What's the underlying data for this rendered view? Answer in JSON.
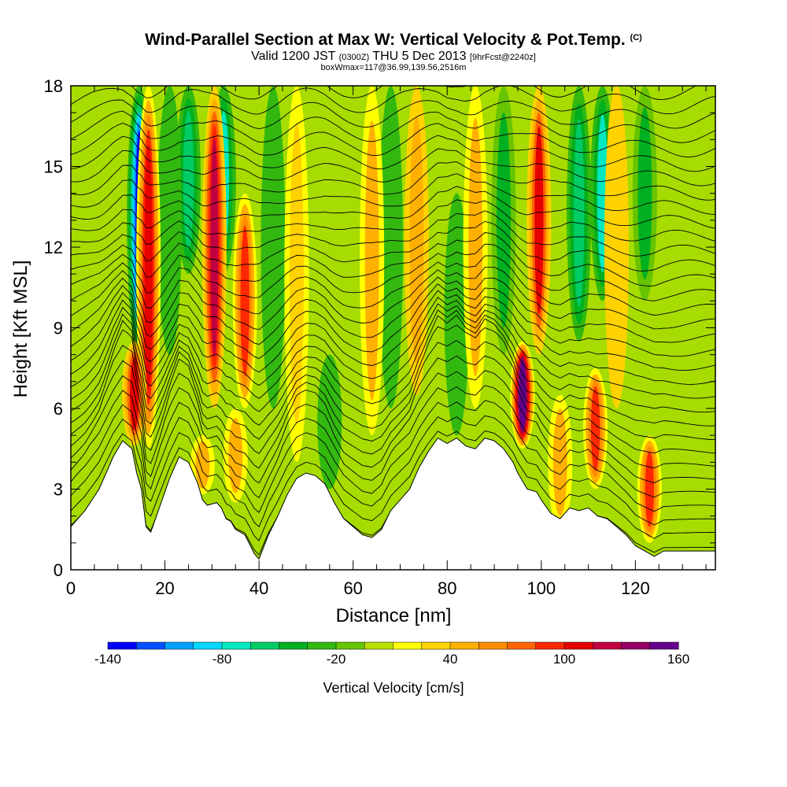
{
  "chart_data": {
    "type": "heatmap",
    "title": "Wind-Parallel Section at Max W: Vertical Velocity & Pot.Temp.",
    "title_mark": "(C)",
    "subtitle_prefix": "Valid 1200 JST",
    "subtitle_utc": "(0300Z)",
    "subtitle_date": "THU 5 Dec 2013",
    "subtitle_fcst": "[9hrFcst@2240z]",
    "subtitle2": "boxWmax=117@36.99,139.56,2516m",
    "xlabel": "Distance [nm]",
    "ylabel": "Height [Kft MSL]",
    "xlim": [
      0,
      137
    ],
    "ylim": [
      0,
      18
    ],
    "x_ticks": [
      "0",
      "20",
      "40",
      "60",
      "80",
      "100",
      "120"
    ],
    "y_ticks": [
      "0",
      "3",
      "6",
      "9",
      "12",
      "15",
      "18"
    ],
    "colorbar": {
      "title": "Vertical Velocity [cm/s]",
      "tick_labels": [
        "-140",
        "-80",
        "-20",
        "40",
        "100",
        "160"
      ],
      "colors": [
        "#0000ff",
        "#0050ff",
        "#00a0ff",
        "#00d8ff",
        "#00e8c0",
        "#00cc66",
        "#00b020",
        "#33b810",
        "#66c400",
        "#b8e000",
        "#ffff00",
        "#ffd200",
        "#ffb000",
        "#ff8c00",
        "#ff6400",
        "#ff2800",
        "#e60000",
        "#c00040",
        "#960066",
        "#64008c"
      ]
    },
    "terrain_top_kft": [
      [
        0,
        1.6
      ],
      [
        3,
        2.2
      ],
      [
        6,
        3.0
      ],
      [
        9,
        4.2
      ],
      [
        11,
        4.8
      ],
      [
        13,
        4.5
      ],
      [
        14,
        3.6
      ],
      [
        15,
        3.0
      ],
      [
        16,
        1.6
      ],
      [
        17,
        1.4
      ],
      [
        19,
        2.4
      ],
      [
        21,
        3.4
      ],
      [
        23,
        4.2
      ],
      [
        25,
        4.0
      ],
      [
        27,
        3.2
      ],
      [
        28,
        2.6
      ],
      [
        29,
        2.4
      ],
      [
        31,
        2.5
      ],
      [
        32,
        2.3
      ],
      [
        33,
        1.9
      ],
      [
        34,
        1.8
      ],
      [
        35,
        1.5
      ],
      [
        37,
        1.3
      ],
      [
        39,
        0.6
      ],
      [
        40,
        0.4
      ],
      [
        42,
        1.3
      ],
      [
        44,
        2.0
      ],
      [
        46,
        2.8
      ],
      [
        48,
        3.4
      ],
      [
        50,
        3.6
      ],
      [
        52,
        3.5
      ],
      [
        54,
        3.2
      ],
      [
        56,
        2.5
      ],
      [
        58,
        1.9
      ],
      [
        60,
        1.6
      ],
      [
        62,
        1.3
      ],
      [
        64,
        1.2
      ],
      [
        66,
        1.5
      ],
      [
        68,
        2.2
      ],
      [
        70,
        2.6
      ],
      [
        72,
        3.0
      ],
      [
        74,
        3.8
      ],
      [
        76,
        4.4
      ],
      [
        78,
        4.9
      ],
      [
        80,
        4.7
      ],
      [
        82,
        4.9
      ],
      [
        84,
        4.6
      ],
      [
        86,
        4.5
      ],
      [
        88,
        4.9
      ],
      [
        90,
        4.8
      ],
      [
        92,
        4.5
      ],
      [
        94,
        4.0
      ],
      [
        95,
        3.6
      ],
      [
        97,
        3.0
      ],
      [
        99,
        2.9
      ],
      [
        100,
        2.6
      ],
      [
        102,
        2.1
      ],
      [
        104,
        1.9
      ],
      [
        106,
        2.3
      ],
      [
        108,
        2.2
      ],
      [
        110,
        2.3
      ],
      [
        112,
        2.0
      ],
      [
        114,
        1.9
      ],
      [
        116,
        1.6
      ],
      [
        118,
        1.3
      ],
      [
        120,
        0.9
      ],
      [
        122,
        0.7
      ],
      [
        124,
        0.5
      ],
      [
        126,
        0.7
      ],
      [
        128,
        0.7
      ],
      [
        137,
        0.7
      ]
    ],
    "updraft_cells": [
      {
        "x": 16.5,
        "z0": 4.5,
        "z1": 18,
        "w": 120
      },
      {
        "x": 13.5,
        "z0": 4.6,
        "z1": 8.5,
        "w": 110
      },
      {
        "x": 30.5,
        "z0": 6.0,
        "z1": 18,
        "w": 130
      },
      {
        "x": 37,
        "z0": 6.0,
        "z1": 14,
        "w": 90
      },
      {
        "x": 35,
        "z0": 2.5,
        "z1": 6.0,
        "w": 50
      },
      {
        "x": 28,
        "z0": 2.8,
        "z1": 5.0,
        "w": 45
      },
      {
        "x": 48,
        "z0": 4.0,
        "z1": 18,
        "w": 40
      },
      {
        "x": 64,
        "z0": 5.0,
        "z1": 18,
        "w": 50
      },
      {
        "x": 73.5,
        "z0": 6.5,
        "z1": 18,
        "w": 55
      },
      {
        "x": 86,
        "z0": 6.0,
        "z1": 18,
        "w": 45
      },
      {
        "x": 96,
        "z0": 4.5,
        "z1": 8.5,
        "w": 170
      },
      {
        "x": 99.5,
        "z0": 8.0,
        "z1": 18,
        "w": 110
      },
      {
        "x": 104,
        "z0": 1.5,
        "z1": 6.5,
        "w": 50
      },
      {
        "x": 111.5,
        "z0": 3.0,
        "z1": 7.5,
        "w": 90
      },
      {
        "x": 123,
        "z0": 1.0,
        "z1": 5.0,
        "w": 90
      },
      {
        "x": 116,
        "z0": 6.0,
        "z1": 18,
        "w": 35
      }
    ],
    "downdraft_cells": [
      {
        "x": 14.5,
        "z0": 8.0,
        "z1": 18,
        "w": -140
      },
      {
        "x": 25,
        "z0": 11.0,
        "z1": 18,
        "w": -70
      },
      {
        "x": 32.5,
        "z0": 11.0,
        "z1": 18,
        "w": -80
      },
      {
        "x": 21,
        "z0": 8.0,
        "z1": 18,
        "w": -30
      },
      {
        "x": 43,
        "z0": 6.0,
        "z1": 18,
        "w": -30
      },
      {
        "x": 68,
        "z0": 6.0,
        "z1": 18,
        "w": -30
      },
      {
        "x": 92,
        "z0": 8.0,
        "z1": 18,
        "w": -40
      },
      {
        "x": 108,
        "z0": 8.5,
        "z1": 18,
        "w": -70
      },
      {
        "x": 113,
        "z0": 10.0,
        "z1": 18,
        "w": -80
      },
      {
        "x": 122,
        "z0": 10.0,
        "z1": 18,
        "w": -40
      },
      {
        "x": 55,
        "z0": 3.0,
        "z1": 8.0,
        "w": -30
      },
      {
        "x": 82,
        "z0": 5.0,
        "z1": 14.0,
        "w": -25
      }
    ],
    "theta_isentropes": {
      "base_kft": 0.2,
      "spacing_kft": 0.55,
      "count": 33
    }
  }
}
